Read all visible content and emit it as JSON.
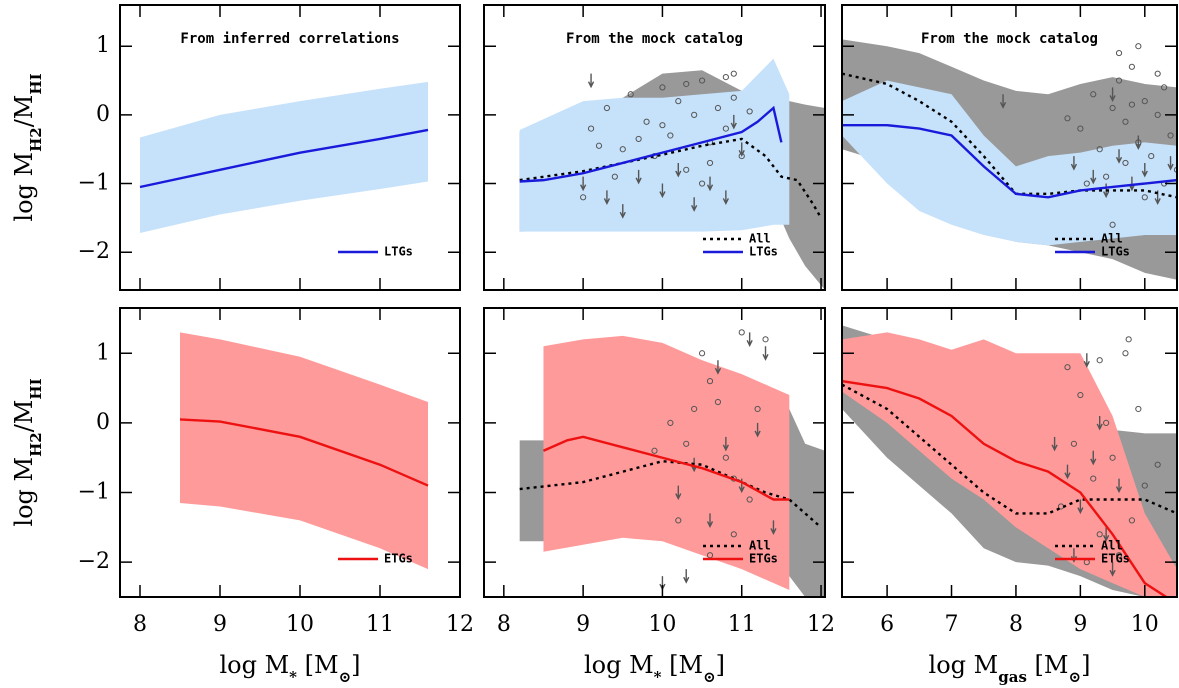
{
  "chart_data": [
    {
      "type": "range",
      "title": "From inferred correlations",
      "ylabel": [
        "log M",
        "H2",
        "/M",
        "HI"
      ],
      "xlim": [
        7.75,
        12
      ],
      "ylim": [
        -2.55,
        1.6
      ],
      "xticks": [
        8,
        9,
        10,
        11,
        12
      ],
      "yticks": [
        {
          "value": -2,
          "label": "−2"
        },
        {
          "value": -1,
          "label": "−1"
        },
        0,
        1
      ],
      "show_xticklabels": false,
      "show_yticklabels": true,
      "legend": "lower right",
      "bands": [
        {
          "color": "#c6e2fb",
          "x": [
            8,
            9,
            10,
            11,
            11.6
          ],
          "upper": [
            -0.33,
            0.0,
            0.2,
            0.38,
            0.48
          ],
          "lower": [
            -1.72,
            -1.45,
            -1.25,
            -1.08,
            -0.97
          ]
        }
      ],
      "series": [
        {
          "name": "LTGs",
          "color": "#1a1adb",
          "style": "solid",
          "x": [
            8,
            9,
            10,
            11,
            11.6
          ],
          "values": [
            -1.05,
            -0.8,
            -0.55,
            -0.35,
            -0.22
          ]
        }
      ]
    },
    {
      "type": "range",
      "title": "From the mock catalog",
      "xlim": [
        7.75,
        12.05
      ],
      "ylim": [
        -2.55,
        1.6
      ],
      "xticks": [
        8,
        9,
        10,
        11,
        12
      ],
      "yticks": [
        -2,
        -1,
        0,
        1
      ],
      "show_xticklabels": false,
      "show_yticklabels": false,
      "legend": "lower right",
      "bands": [
        {
          "color": "#999999",
          "x": [
            8.2,
            9,
            10,
            10.5,
            11,
            11.3,
            11.6,
            11.8,
            12.05
          ],
          "upper": [
            -0.25,
            -0.1,
            0.6,
            0.65,
            0.35,
            0.15,
            0.2,
            0.15,
            0.1
          ],
          "lower": [
            -1.7,
            -1.68,
            -1.45,
            -1.3,
            -1.2,
            -1.0,
            -1.8,
            -2.2,
            -2.55
          ]
        },
        {
          "color": "#c6e2fb",
          "x": [
            8.2,
            9,
            9.5,
            10,
            10.5,
            11,
            11.4,
            11.6
          ],
          "upper": [
            -0.22,
            0.2,
            0.25,
            0.25,
            0.3,
            0.35,
            0.82,
            0.3
          ],
          "lower": [
            -1.7,
            -1.7,
            -1.7,
            -1.7,
            -1.7,
            -1.68,
            -1.6,
            -1.6
          ]
        }
      ],
      "points": {
        "x": [
          9.1,
          9.3,
          9.5,
          9.6,
          9.8,
          9.9,
          10.0,
          10.1,
          10.2,
          10.3,
          10.4,
          10.5,
          10.6,
          10.7,
          10.8,
          10.9,
          11.0,
          9.4,
          9.7,
          10.0,
          10.3,
          10.6,
          10.9,
          9.2,
          10.5,
          10.8,
          11.1,
          9.0
        ],
        "y": [
          -0.2,
          0.1,
          -0.5,
          0.3,
          -0.1,
          -0.6,
          0.4,
          -0.3,
          0.2,
          -0.8,
          0.0,
          0.5,
          -0.4,
          0.1,
          -0.2,
          0.6,
          -0.6,
          -0.9,
          -0.35,
          -0.15,
          0.45,
          -0.7,
          0.25,
          -0.45,
          -1.0,
          0.55,
          0.05,
          -1.2
        ]
      },
      "limits": {
        "x": [
          9.0,
          9.3,
          9.7,
          10.0,
          10.2,
          10.4,
          10.6,
          10.8,
          11.0,
          9.5,
          10.9,
          9.1
        ],
        "y": [
          -0.9,
          -1.1,
          -0.8,
          -1.0,
          -0.7,
          -1.2,
          -0.9,
          -1.1,
          -0.4,
          -1.3,
          0.0,
          0.6
        ]
      },
      "series": [
        {
          "name": "All",
          "color": "#000000",
          "style": "dotted",
          "x": [
            8.2,
            9,
            9.5,
            10,
            10.5,
            11,
            11.3,
            11.5,
            11.7,
            11.9,
            12.0
          ],
          "values": [
            -0.95,
            -0.82,
            -0.7,
            -0.58,
            -0.45,
            -0.35,
            -0.6,
            -0.9,
            -0.95,
            -1.3,
            -1.5
          ]
        },
        {
          "name": "LTGs",
          "color": "#1a1adb",
          "style": "solid",
          "x": [
            8.2,
            8.5,
            9,
            9.5,
            10,
            10.5,
            11,
            11.2,
            11.4,
            11.5
          ],
          "values": [
            -0.97,
            -0.95,
            -0.85,
            -0.7,
            -0.55,
            -0.4,
            -0.25,
            -0.1,
            0.1,
            -0.4
          ]
        }
      ]
    },
    {
      "type": "range",
      "title": "From the mock catalog",
      "xlim": [
        5.3,
        10.5
      ],
      "ylim": [
        -2.55,
        1.6
      ],
      "xticks": [
        6,
        7,
        8,
        9,
        10
      ],
      "yticks": [
        -2,
        -1,
        0,
        1
      ],
      "show_xticklabels": false,
      "show_yticklabels": false,
      "legend": "lower right",
      "bands": [
        {
          "color": "#999999",
          "x": [
            5.3,
            6,
            6.5,
            7,
            7.5,
            8,
            8.5,
            9,
            9.5,
            10,
            10.5
          ],
          "upper": [
            1.1,
            1.0,
            0.9,
            0.7,
            0.5,
            0.35,
            0.3,
            0.45,
            0.55,
            0.45,
            0.4
          ],
          "lower": [
            -0.5,
            -0.7,
            -1.0,
            -1.4,
            -1.7,
            -1.85,
            -1.9,
            -2.0,
            -2.1,
            -2.3,
            -2.4
          ]
        },
        {
          "color": "#c6e2fb",
          "x": [
            5.3,
            6,
            6.5,
            7,
            7.5,
            8,
            8.5,
            9,
            9.5,
            10,
            10.5
          ],
          "upper": [
            0.2,
            0.5,
            0.4,
            0.3,
            -0.3,
            -0.75,
            -0.6,
            -0.55,
            -0.45,
            -0.4,
            -0.45
          ],
          "lower": [
            -0.3,
            -1.0,
            -1.4,
            -1.6,
            -1.75,
            -1.85,
            -1.9,
            -1.85,
            -1.8,
            -1.75,
            -1.75
          ]
        }
      ],
      "points": {
        "x": [
          9.0,
          9.2,
          9.3,
          9.5,
          9.6,
          9.7,
          9.8,
          9.9,
          10.0,
          10.1,
          10.2,
          10.3,
          10.4,
          10.5,
          9.4,
          9.6,
          9.8,
          10.0,
          10.2,
          9.1,
          9.7,
          9.9,
          10.3,
          8.8,
          9.5
        ],
        "y": [
          -0.2,
          0.3,
          -0.5,
          0.1,
          0.5,
          -0.1,
          0.7,
          -0.4,
          0.2,
          -0.6,
          0.0,
          0.4,
          -0.3,
          -0.8,
          -0.9,
          0.9,
          0.15,
          -1.2,
          0.6,
          -1.0,
          -0.7,
          1.0,
          -1.0,
          -0.05,
          -1.6
        ]
      },
      "limits": {
        "x": [
          8.9,
          9.2,
          9.4,
          9.6,
          9.8,
          10.0,
          10.2,
          9.5,
          9.9,
          10.4,
          7.8
        ],
        "y": [
          -0.6,
          -0.8,
          -1.0,
          -0.5,
          -0.9,
          -0.7,
          -1.1,
          0.4,
          -0.3,
          -0.6,
          0.3
        ]
      },
      "series": [
        {
          "name": "All",
          "color": "#000000",
          "style": "dotted",
          "x": [
            5.3,
            6,
            6.5,
            7,
            7.5,
            8,
            8.5,
            9,
            9.5,
            10,
            10.5
          ],
          "values": [
            0.6,
            0.45,
            0.2,
            -0.1,
            -0.6,
            -1.15,
            -1.15,
            -1.1,
            -1.1,
            -1.1,
            -1.2
          ]
        },
        {
          "name": "LTGs",
          "color": "#1a1adb",
          "style": "solid",
          "x": [
            5.3,
            6,
            6.5,
            7,
            7.5,
            8,
            8.5,
            9,
            9.5,
            10,
            10.5
          ],
          "values": [
            -0.15,
            -0.15,
            -0.2,
            -0.3,
            -0.75,
            -1.15,
            -1.2,
            -1.1,
            -1.05,
            -1.0,
            -0.95
          ]
        }
      ]
    },
    {
      "type": "range",
      "ylabel": [
        "log M",
        "H2",
        "/M",
        "HI"
      ],
      "xlabel": [
        "log M",
        "*",
        " [M",
        "⊙",
        "]"
      ],
      "xlim": [
        7.75,
        12
      ],
      "ylim": [
        -2.5,
        1.65
      ],
      "xticks": [
        8,
        9,
        10,
        11,
        12
      ],
      "yticks": [
        {
          "value": -2,
          "label": "−2"
        },
        {
          "value": -1,
          "label": "−1"
        },
        0,
        1
      ],
      "show_xticklabels": true,
      "show_yticklabels": true,
      "legend": "lower right",
      "bands": [
        {
          "color": "#ff9a9a",
          "x": [
            8.5,
            9,
            10,
            11,
            11.6
          ],
          "upper": [
            1.3,
            1.2,
            0.95,
            0.55,
            0.3
          ],
          "lower": [
            -1.15,
            -1.2,
            -1.4,
            -1.8,
            -2.1
          ]
        }
      ],
      "series": [
        {
          "name": "ETGs",
          "color": "#ee1111",
          "style": "solid",
          "x": [
            8.5,
            9,
            10,
            11,
            11.6
          ],
          "values": [
            0.05,
            0.02,
            -0.2,
            -0.6,
            -0.9
          ]
        }
      ]
    },
    {
      "type": "range",
      "xlabel": [
        "log M",
        "*",
        " [M",
        "⊙",
        "]"
      ],
      "xlim": [
        7.75,
        12.05
      ],
      "ylim": [
        -2.5,
        1.65
      ],
      "xticks": [
        8,
        9,
        10,
        11,
        12
      ],
      "yticks": [
        -2,
        -1,
        0,
        1
      ],
      "show_xticklabels": true,
      "show_yticklabels": false,
      "legend": "lower right",
      "bands": [
        {
          "color": "#999999",
          "x": [
            8.2,
            8.5,
            9,
            10,
            10.5,
            11,
            11.6,
            11.8,
            12.05
          ],
          "upper": [
            -0.25,
            -0.25,
            -0.2,
            0.3,
            0.5,
            0.3,
            0.2,
            -0.3,
            -0.4
          ],
          "lower": [
            -1.7,
            -1.7,
            -1.65,
            -1.6,
            -1.5,
            -1.7,
            -2.2,
            -2.5,
            -2.5
          ]
        },
        {
          "color": "#ff9a9a",
          "x": [
            8.5,
            9,
            9.5,
            10,
            10.5,
            11,
            11.6
          ],
          "upper": [
            1.1,
            1.2,
            1.25,
            1.15,
            0.9,
            0.7,
            0.4
          ],
          "lower": [
            -1.85,
            -1.75,
            -1.65,
            -1.7,
            -1.9,
            -2.1,
            -2.4
          ]
        }
      ],
      "points": {
        "x": [
          10.1,
          10.3,
          10.5,
          10.6,
          10.7,
          10.8,
          10.9,
          11.0,
          11.1,
          10.2,
          10.4,
          10.9,
          11.2,
          11.3,
          9.9,
          10.6
        ],
        "y": [
          0.0,
          -0.3,
          1.0,
          0.6,
          0.3,
          -0.5,
          -0.8,
          1.3,
          -1.1,
          -1.4,
          0.2,
          -1.6,
          0.2,
          1.2,
          -0.4,
          -1.9
        ]
      },
      "limits": {
        "x": [
          10.2,
          10.4,
          10.6,
          10.8,
          11.0,
          11.2,
          10.3,
          10.7,
          11.4,
          10.0,
          11.1,
          11.3
        ],
        "y": [
          -0.9,
          -0.5,
          -1.3,
          -0.2,
          -0.8,
          0.0,
          -2.1,
          0.9,
          -1.4,
          -2.2,
          1.3,
          1.1
        ]
      },
      "series": [
        {
          "name": "All",
          "color": "#000000",
          "style": "dotted",
          "x": [
            8.2,
            9,
            9.5,
            10,
            10.5,
            11,
            11.3,
            11.6,
            11.8,
            12
          ],
          "values": [
            -0.95,
            -0.85,
            -0.7,
            -0.55,
            -0.6,
            -0.85,
            -1.0,
            -1.1,
            -1.3,
            -1.5
          ]
        },
        {
          "name": "ETGs",
          "color": "#ee1111",
          "style": "solid",
          "x": [
            8.5,
            8.8,
            9,
            9.5,
            10,
            10.5,
            11,
            11.4,
            11.6
          ],
          "values": [
            -0.4,
            -0.25,
            -0.2,
            -0.35,
            -0.5,
            -0.65,
            -0.85,
            -1.1,
            -1.1
          ]
        }
      ]
    },
    {
      "type": "range",
      "xlabel": [
        "log M",
        "gas",
        " [M",
        "⊙",
        "]"
      ],
      "xlim": [
        5.3,
        10.5
      ],
      "ylim": [
        -2.5,
        1.65
      ],
      "xticks": [
        6,
        7,
        8,
        9,
        10
      ],
      "yticks": [
        -2,
        -1,
        0,
        1
      ],
      "show_xticklabels": true,
      "show_yticklabels": false,
      "legend": "lower right",
      "bands": [
        {
          "color": "#999999",
          "x": [
            5.3,
            6,
            6.5,
            7,
            7.5,
            8,
            8.5,
            9,
            9.5,
            10,
            10.5
          ],
          "upper": [
            1.4,
            1.2,
            1.0,
            0.9,
            0.75,
            0.5,
            0.3,
            -0.1,
            -0.1,
            -0.15,
            -0.15
          ],
          "lower": [
            0.2,
            -0.5,
            -0.9,
            -1.3,
            -1.8,
            -2.0,
            -2.05,
            -2.2,
            -2.4,
            -2.5,
            -2.5
          ]
        },
        {
          "color": "#ff9a9a",
          "x": [
            5.3,
            6,
            6.5,
            7,
            7.5,
            8,
            8.5,
            9,
            9.5,
            10,
            10.5
          ],
          "upper": [
            1.2,
            1.3,
            1.2,
            1.05,
            1.2,
            1.0,
            1.0,
            1.0,
            0.1,
            -1.3,
            -2.1
          ],
          "lower": [
            0.45,
            0.0,
            -0.4,
            -0.8,
            -1.1,
            -1.5,
            -1.8,
            -2.1,
            -2.3,
            -2.5,
            -2.5
          ]
        }
      ],
      "points": {
        "x": [
          8.7,
          8.9,
          9.0,
          9.2,
          9.3,
          9.4,
          9.5,
          9.7,
          9.8,
          9.9,
          10.0,
          10.2,
          9.1,
          9.6,
          8.8,
          9.3,
          9.75
        ],
        "y": [
          -1.2,
          -0.3,
          0.4,
          -0.8,
          -1.6,
          0.0,
          -0.5,
          1.0,
          -1.4,
          0.2,
          -0.9,
          -0.6,
          -2.0,
          -1.9,
          0.8,
          0.9,
          1.2
        ]
      },
      "limits": {
        "x": [
          8.6,
          8.8,
          9.0,
          9.2,
          9.4,
          9.6,
          9.1,
          9.5,
          9.3,
          8.9
        ],
        "y": [
          -0.2,
          -0.6,
          -1.1,
          -0.4,
          -1.5,
          -0.8,
          1.0,
          -2.0,
          0.1,
          -1.8
        ]
      },
      "series": [
        {
          "name": "All",
          "color": "#000000",
          "style": "dotted",
          "x": [
            5.3,
            6,
            6.5,
            7,
            7.5,
            8,
            8.5,
            9,
            9.5,
            10,
            10.5
          ],
          "values": [
            0.55,
            0.2,
            -0.2,
            -0.6,
            -1.0,
            -1.3,
            -1.3,
            -1.1,
            -1.1,
            -1.1,
            -1.3
          ]
        },
        {
          "name": "ETGs",
          "color": "#ee1111",
          "style": "solid",
          "x": [
            5.3,
            6,
            6.5,
            7,
            7.5,
            8,
            8.5,
            9,
            9.5,
            10,
            10.5
          ],
          "values": [
            0.6,
            0.5,
            0.35,
            0.1,
            -0.3,
            -0.55,
            -0.7,
            -1.0,
            -1.6,
            -2.3,
            -2.6
          ]
        }
      ]
    }
  ]
}
